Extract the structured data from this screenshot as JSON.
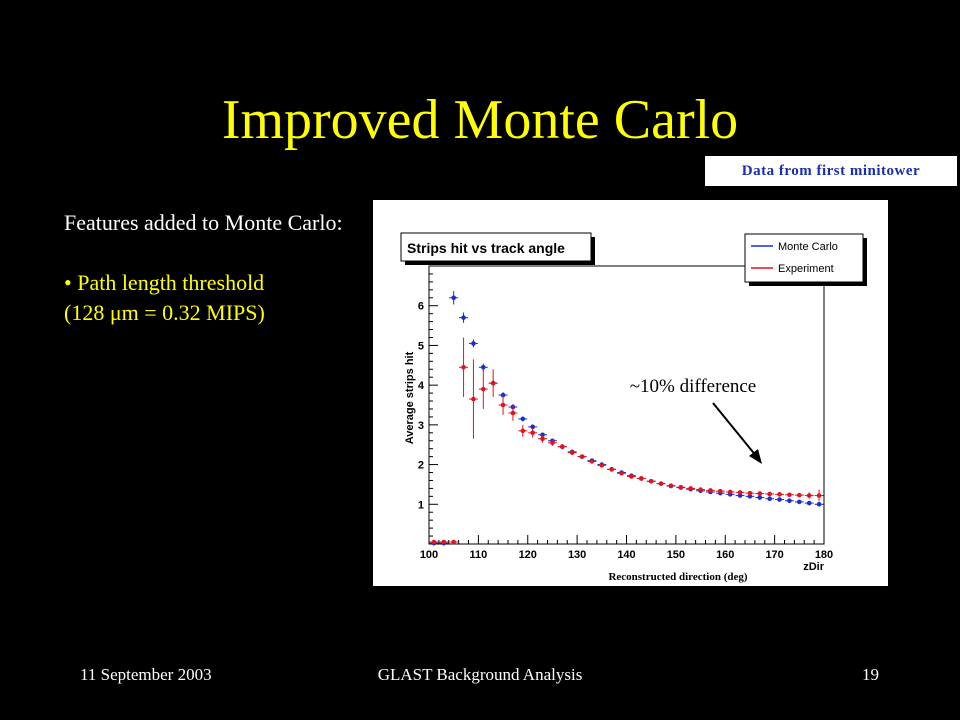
{
  "slide": {
    "title": "Improved Monte Carlo",
    "data_note": "Data from first minitower",
    "features_heading": "Features added to Monte Carlo:",
    "bullet_marker": "•",
    "bullet_line1": "Path length threshold",
    "bullet_line2": "(128 μm = 0.32 MIPS)",
    "annotation": "~10% difference",
    "footer_left": "11 September 2003",
    "footer_center": "GLAST Background Analysis",
    "footer_right": "19"
  },
  "colors": {
    "title": "#ffff00",
    "bullet": "#ffff00",
    "mc": "#1a2ecc",
    "exp": "#e0141e",
    "note": "#1a2eb0"
  },
  "chart_data": {
    "type": "scatter",
    "title": "Strips hit vs track angle",
    "xlabel": "Reconstructed direction (deg)",
    "xaxis_name": "zDir",
    "ylabel": "Average strips hit",
    "xlim": [
      100,
      180
    ],
    "ylim": [
      0,
      7
    ],
    "xticks": [
      100,
      110,
      120,
      130,
      140,
      150,
      160,
      170,
      180
    ],
    "yticks": [
      1,
      2,
      3,
      4,
      5,
      6
    ],
    "legend_position": "top-right",
    "series": [
      {
        "name": "Monte Carlo",
        "color": "#1a2ecc",
        "x": [
          101,
          103,
          105,
          107,
          109,
          111,
          113,
          115,
          117,
          119,
          121,
          123,
          125,
          127,
          129,
          131,
          133,
          135,
          137,
          139,
          141,
          143,
          145,
          147,
          149,
          151,
          153,
          155,
          157,
          159,
          161,
          163,
          165,
          167,
          169,
          171,
          173,
          175,
          177,
          179
        ],
        "y": [
          0.02,
          0.02,
          6.2,
          5.7,
          5.05,
          4.45,
          4.05,
          3.75,
          3.45,
          3.15,
          2.95,
          2.75,
          2.6,
          2.45,
          2.32,
          2.2,
          2.1,
          2.0,
          1.88,
          1.8,
          1.72,
          1.65,
          1.58,
          1.52,
          1.46,
          1.42,
          1.38,
          1.34,
          1.31,
          1.28,
          1.25,
          1.22,
          1.2,
          1.17,
          1.14,
          1.12,
          1.09,
          1.06,
          1.03,
          1.0
        ],
        "yerr": [
          0,
          0,
          0.17,
          0.13,
          0.1,
          0.09,
          0.08,
          0.07,
          0.07,
          0.06,
          0.06,
          0.05,
          0.05,
          0.05,
          0.04,
          0.04,
          0.04,
          0.04,
          0.04,
          0.04,
          0.04,
          0.04,
          0.04,
          0.04,
          0.04,
          0.04,
          0.04,
          0.04,
          0.04,
          0.04,
          0.04,
          0.04,
          0.04,
          0.04,
          0.04,
          0.04,
          0.04,
          0.04,
          0.04,
          0.04
        ]
      },
      {
        "name": "Experiment",
        "color": "#e0141e",
        "x": [
          101,
          103,
          105,
          107,
          109,
          111,
          113,
          115,
          117,
          119,
          121,
          123,
          125,
          127,
          129,
          131,
          133,
          135,
          137,
          139,
          141,
          143,
          145,
          147,
          149,
          151,
          153,
          155,
          157,
          159,
          161,
          163,
          165,
          167,
          169,
          171,
          173,
          175,
          177,
          179
        ],
        "y": [
          0.05,
          0.05,
          0.05,
          4.45,
          3.65,
          3.9,
          4.05,
          3.5,
          3.3,
          2.85,
          2.8,
          2.65,
          2.55,
          2.45,
          2.3,
          2.2,
          2.08,
          1.98,
          1.88,
          1.78,
          1.7,
          1.65,
          1.58,
          1.52,
          1.47,
          1.43,
          1.4,
          1.37,
          1.35,
          1.33,
          1.31,
          1.3,
          1.28,
          1.27,
          1.26,
          1.25,
          1.24,
          1.23,
          1.22,
          1.22
        ],
        "yerr": [
          0,
          0,
          0,
          0.75,
          1.0,
          0.5,
          0.35,
          0.25,
          0.2,
          0.15,
          0.12,
          0.1,
          0.08,
          0.07,
          0.06,
          0.05,
          0.05,
          0.05,
          0.05,
          0.04,
          0.04,
          0.04,
          0.04,
          0.04,
          0.04,
          0.04,
          0.04,
          0.04,
          0.04,
          0.04,
          0.04,
          0.04,
          0.04,
          0.04,
          0.04,
          0.04,
          0.04,
          0.04,
          0.08,
          0.15
        ]
      }
    ]
  }
}
